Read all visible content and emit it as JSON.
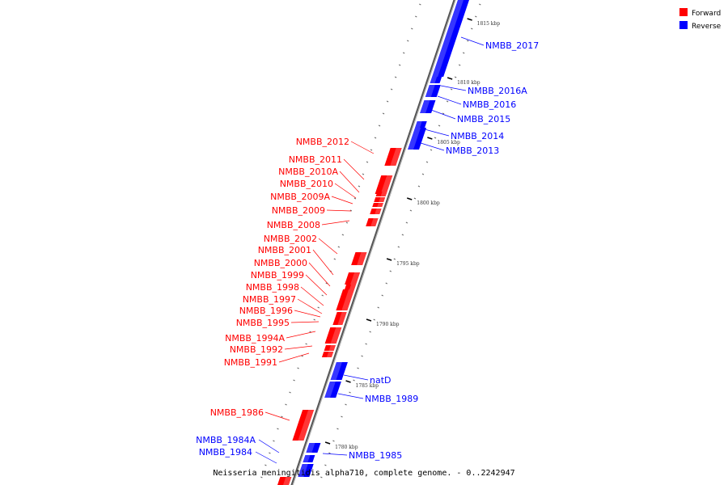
{
  "title": "Neisseria meningitidis alpha710, complete genome. - 0..2242947",
  "legend": [
    {
      "label": "Forward",
      "color": "#ff0000"
    },
    {
      "label": "Reverse",
      "color": "#0000ff"
    }
  ],
  "colors": {
    "forward": "#ff0000",
    "reverse": "#0000ff",
    "backbone": "#888888"
  },
  "ticks": [
    "1815 kbp",
    "1810 kbp",
    "1805 kbp",
    "1800 kbp",
    "1795 kbp",
    "1790 kbp",
    "1785 kbp",
    "1780 kbp"
  ],
  "reverse_labels": [
    "NMBB_2017",
    "NMBB_2016A",
    "NMBB_2016",
    "NMBB_2015",
    "NMBB_2014",
    "NMBB_2013",
    "natD",
    "NMBB_1989",
    "NMBB_1985",
    "NMBB_1984A",
    "NMBB_1984"
  ],
  "forward_labels": [
    "NMBB_2012",
    "NMBB_2011",
    "NMBB_2010A",
    "NMBB_2010",
    "NMBB_2009A",
    "NMBB_2009",
    "NMBB_2008",
    "NMBB_2002",
    "NMBB_2001",
    "NMBB_2000",
    "NMBB_1999",
    "NMBB_1998",
    "NMBB_1997",
    "NMBB_1996",
    "NMBB_1995",
    "NMBB_1994A",
    "NMBB_1992",
    "NMBB_1991",
    "NMBB_1986"
  ]
}
